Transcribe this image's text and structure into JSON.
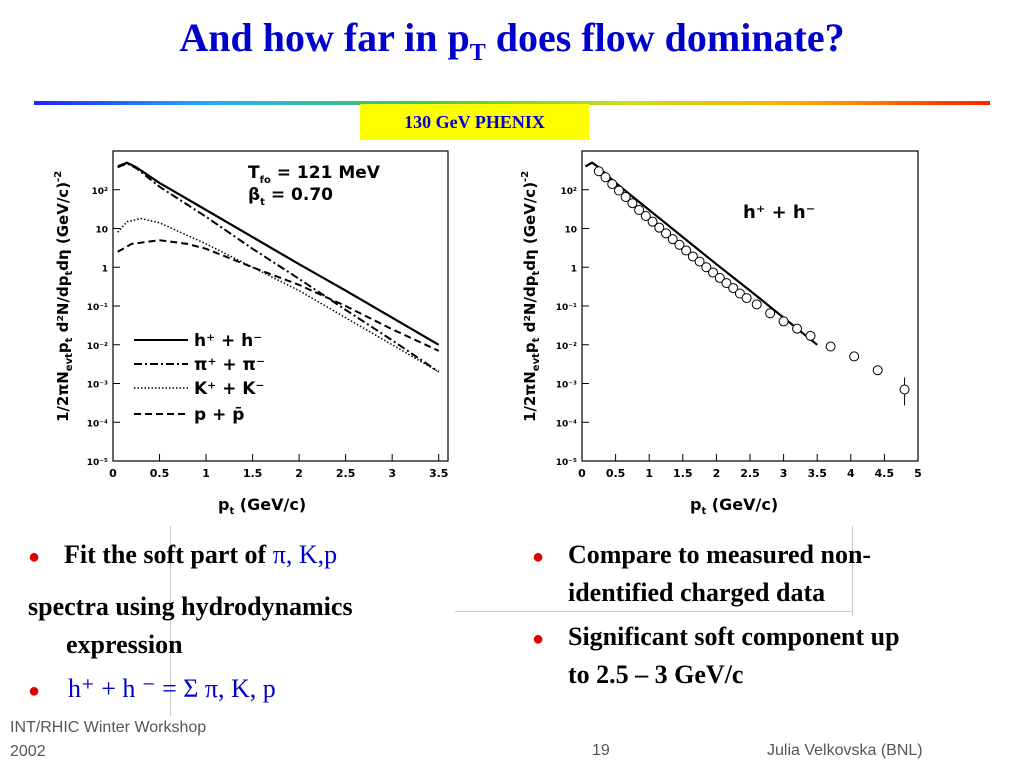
{
  "slide": {
    "title_main": "And how far in p",
    "title_sub": "T",
    "title_rest": " does flow dominate?",
    "tag": "130 GeV PHENIX"
  },
  "left_plot": {
    "y_axis_label": "1/2πN",
    "y_axis_sub1": "evt",
    "y_axis_mid": "p",
    "y_axis_sub2": "t",
    "y_axis_rest": " d²N/dp",
    "y_axis_sub3": "t",
    "y_axis_rest2": "dη (GeV/c)",
    "y_axis_sup": "-2",
    "x_label": "p",
    "x_label_sub": "t",
    "x_label_rest": " (GeV/c)",
    "param1": "T",
    "param1_sub": "fo",
    "param1_val": " = 121 MeV",
    "param2": "β",
    "param2_sub": "t",
    "param2_val": " = 0.70",
    "legend": [
      "h⁺ + h⁻",
      "π⁺ + π⁻",
      "K⁺ + K⁻",
      "p + p̄"
    ]
  },
  "right_plot": {
    "label": "h⁺ + h⁻",
    "x_label": "p",
    "x_label_sub": "t",
    "x_label_rest": " (GeV/c)"
  },
  "bullets_left": {
    "b1_text": "Fit the soft part of ",
    "b1_greek": "π, K,p",
    "b1_cont1": "spectra using hydrodynamics",
    "b1_cont2": "expression",
    "b2_text": "h⁺ + h ⁻ =  Σ π, K, p"
  },
  "bullets_right": {
    "b1_line1": "Compare to measured non-",
    "b1_line2": "identified charged data",
    "b2_line1": "Significant soft component up",
    "b2_line2": "to 2.5 – 3 GeV/c"
  },
  "footer": {
    "left1": "INT/RHIC Winter Workshop",
    "left2": "2002",
    "page": "19",
    "author": "Julia Velkovska (BNL)"
  },
  "chart_data": [
    {
      "type": "line",
      "log_y": true,
      "xlim": [
        0,
        3.6
      ],
      "x_ticks": [
        "0",
        "0.5",
        "1",
        "1.5",
        "2",
        "2.5",
        "3",
        "3.5"
      ],
      "y_ticks": [
        "10⁻⁵",
        "10⁻⁴",
        "10⁻³",
        "10⁻²",
        "10⁻¹",
        "1",
        "10",
        "10²"
      ],
      "y_range_log10": [
        -5,
        3
      ],
      "series": [
        {
          "name": "h⁺ + h⁻",
          "style": "solid",
          "x": [
            0.05,
            0.15,
            0.25,
            0.5,
            1,
            1.5,
            2,
            2.5,
            3,
            3.5
          ],
          "y": [
            400,
            500,
            380,
            150,
            30,
            6,
            1.2,
            0.25,
            0.05,
            0.01
          ]
        },
        {
          "name": "π⁺ + π⁻",
          "style": "dashdot",
          "x": [
            0.05,
            0.15,
            0.25,
            0.5,
            1,
            1.5,
            2,
            2.5,
            3,
            3.5
          ],
          "y": [
            380,
            480,
            360,
            120,
            20,
            3,
            0.5,
            0.08,
            0.013,
            0.002
          ]
        },
        {
          "name": "K⁺ + K⁻",
          "style": "dotted",
          "x": [
            0.05,
            0.15,
            0.3,
            0.5,
            1,
            1.5,
            2,
            2.5,
            3,
            3.5
          ],
          "y": [
            8,
            15,
            18,
            14,
            4,
            1,
            0.25,
            0.05,
            0.01,
            0.002
          ]
        },
        {
          "name": "p + p̄",
          "style": "dashed",
          "x": [
            0.05,
            0.2,
            0.5,
            0.8,
            1,
            1.5,
            2,
            2.5,
            3,
            3.5
          ],
          "y": [
            2.5,
            4,
            5,
            4,
            3,
            1,
            0.35,
            0.1,
            0.025,
            0.007
          ]
        }
      ]
    },
    {
      "type": "scatter",
      "log_y": true,
      "xlim": [
        0,
        5
      ],
      "x_ticks": [
        "0",
        "0.5",
        "1",
        "1.5",
        "2",
        "2.5",
        "3",
        "3.5",
        "4",
        "4.5",
        "5"
      ],
      "y_ticks": [
        "10⁻⁵",
        "10⁻⁴",
        "10⁻³",
        "10⁻²",
        "10⁻¹",
        "1",
        "10",
        "10²"
      ],
      "y_range_log10": [
        -5,
        3
      ],
      "series": [
        {
          "name": "h⁺ + h⁻ fit",
          "style": "solid",
          "x": [
            0.05,
            0.15,
            0.25,
            0.5,
            1,
            1.5,
            2,
            2.5,
            3,
            3.5
          ],
          "y": [
            400,
            500,
            380,
            150,
            30,
            6,
            1.2,
            0.25,
            0.05,
            0.01
          ]
        },
        {
          "name": "h⁺ + h⁻ data",
          "style": "open-circle",
          "x": [
            0.25,
            0.35,
            0.45,
            0.55,
            0.65,
            0.75,
            0.85,
            0.95,
            1.05,
            1.15,
            1.25,
            1.35,
            1.45,
            1.55,
            1.65,
            1.75,
            1.85,
            1.95,
            2.05,
            2.15,
            2.25,
            2.35,
            2.45,
            2.6,
            2.8,
            3.0,
            3.2,
            3.4,
            3.7,
            4.05,
            4.4,
            4.8
          ],
          "y": [
            300,
            210,
            140,
            95,
            65,
            45,
            30,
            21,
            15,
            10.5,
            7.5,
            5.3,
            3.8,
            2.7,
            1.9,
            1.4,
            1.0,
            0.73,
            0.53,
            0.39,
            0.29,
            0.21,
            0.16,
            0.11,
            0.065,
            0.04,
            0.026,
            0.017,
            0.009,
            0.005,
            0.0022,
            0.0007
          ]
        }
      ]
    }
  ]
}
